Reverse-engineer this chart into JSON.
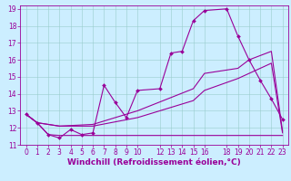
{
  "xlabel": "Windchill (Refroidissement éolien,°C)",
  "bg_color": "#cceeff",
  "grid_color": "#99cccc",
  "line_color": "#990099",
  "xlim": [
    -0.5,
    23.5
  ],
  "ylim": [
    11,
    19.2
  ],
  "xticks": [
    0,
    1,
    2,
    3,
    4,
    5,
    6,
    7,
    8,
    9,
    10,
    12,
    13,
    14,
    15,
    16,
    18,
    19,
    20,
    21,
    22,
    23
  ],
  "yticks": [
    11,
    12,
    13,
    14,
    15,
    16,
    17,
    18,
    19
  ],
  "line1_x": [
    0,
    1,
    2,
    3,
    4,
    5,
    6,
    7,
    8,
    9,
    10,
    12,
    13,
    14,
    15,
    16,
    18,
    19,
    20,
    21,
    22,
    23
  ],
  "line1_y": [
    12.8,
    12.3,
    11.6,
    11.4,
    11.9,
    11.6,
    11.7,
    14.5,
    13.5,
    12.6,
    14.2,
    14.3,
    16.4,
    16.5,
    18.3,
    18.9,
    19.0,
    17.4,
    16.0,
    14.8,
    13.7,
    12.5
  ],
  "line2_x": [
    0,
    1,
    2,
    3,
    4,
    5,
    6,
    7,
    8,
    9,
    10,
    12,
    13,
    14,
    15,
    16,
    18,
    19,
    20,
    21,
    22,
    23
  ],
  "line2_y": [
    12.8,
    12.3,
    11.6,
    11.55,
    11.55,
    11.55,
    11.55,
    11.55,
    11.55,
    11.55,
    11.55,
    11.55,
    11.55,
    11.55,
    11.55,
    11.55,
    11.55,
    11.55,
    11.55,
    11.55,
    11.55,
    11.55
  ],
  "line3_x": [
    0,
    1,
    3,
    6,
    10,
    15,
    16,
    19,
    20,
    22,
    23
  ],
  "line3_y": [
    12.8,
    12.3,
    12.1,
    12.1,
    12.6,
    13.6,
    14.2,
    14.9,
    15.2,
    15.8,
    11.7
  ],
  "line4_x": [
    0,
    1,
    3,
    6,
    10,
    15,
    16,
    19,
    20,
    22,
    23
  ],
  "line4_y": [
    12.8,
    12.3,
    12.1,
    12.2,
    13.0,
    14.3,
    15.2,
    15.5,
    16.0,
    16.5,
    11.8
  ],
  "tick_fontsize": 5.5,
  "label_fontsize": 6.5
}
